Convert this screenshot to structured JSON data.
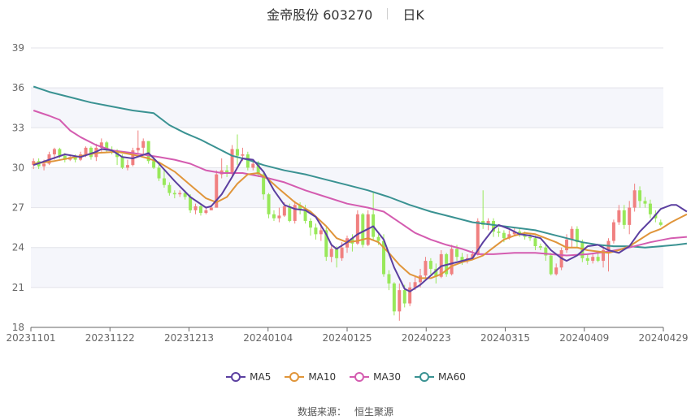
{
  "header": {
    "title": "金帝股份 603270",
    "period": "日K"
  },
  "source": {
    "label": "数据来源：",
    "name": "恒生聚源"
  },
  "colors": {
    "up": "#f08080",
    "down": "#98e85a",
    "MA5": "#5b3fa0",
    "MA10": "#e0953a",
    "MA30": "#d45cb0",
    "MA60": "#3a9292"
  },
  "chart_data": {
    "type": "candlestick",
    "ylim": [
      18,
      39
    ],
    "yticks": [
      18,
      21,
      24,
      27,
      30,
      33,
      36,
      39
    ],
    "xtick_labels": [
      "20231101",
      "20231122",
      "20231213",
      "20240104",
      "20240125",
      "20240223",
      "20240315",
      "20240409",
      "20240429"
    ],
    "legend": [
      "MA5",
      "MA10",
      "MA30",
      "MA60"
    ],
    "candles": [
      [
        30.2,
        30.5,
        29.9,
        30.7
      ],
      [
        30.5,
        30.1,
        29.9,
        30.7
      ],
      [
        30.1,
        30.3,
        29.8,
        30.6
      ],
      [
        30.3,
        31.0,
        30.2,
        31.2
      ],
      [
        31.0,
        31.4,
        30.6,
        31.5
      ],
      [
        31.4,
        30.9,
        30.7,
        31.5
      ],
      [
        30.9,
        30.6,
        30.4,
        31.1
      ],
      [
        30.6,
        30.8,
        30.5,
        31.0
      ],
      [
        30.8,
        30.6,
        30.4,
        31.0
      ],
      [
        30.6,
        31.0,
        30.5,
        31.2
      ],
      [
        31.0,
        31.5,
        30.8,
        31.6
      ],
      [
        31.5,
        30.8,
        30.6,
        31.6
      ],
      [
        30.8,
        31.5,
        30.5,
        31.8
      ],
      [
        31.5,
        31.9,
        31.2,
        32.2
      ],
      [
        31.9,
        31.3,
        31.1,
        32.0
      ],
      [
        31.3,
        31.2,
        31.0,
        31.6
      ],
      [
        31.2,
        30.8,
        30.2,
        31.4
      ],
      [
        30.8,
        30.0,
        29.9,
        31.0
      ],
      [
        30.0,
        30.2,
        29.8,
        30.6
      ],
      [
        30.2,
        31.3,
        30.1,
        31.5
      ],
      [
        31.3,
        31.5,
        31.1,
        32.8
      ],
      [
        31.5,
        32.0,
        30.9,
        32.2
      ],
      [
        32.0,
        30.5,
        30.3,
        32.0
      ],
      [
        30.5,
        30.0,
        29.9,
        30.9
      ],
      [
        30.0,
        29.2,
        29.0,
        30.2
      ],
      [
        29.2,
        28.7,
        28.5,
        29.8
      ],
      [
        28.7,
        28.1,
        27.9,
        28.9
      ],
      [
        28.1,
        28.0,
        27.7,
        28.3
      ],
      [
        28.0,
        28.1,
        27.8,
        28.3
      ],
      [
        28.1,
        27.8,
        27.6,
        28.3
      ],
      [
        27.8,
        26.8,
        26.6,
        28.0
      ],
      [
        26.8,
        27.1,
        26.5,
        27.3
      ],
      [
        27.1,
        26.6,
        26.4,
        27.3
      ],
      [
        26.6,
        26.8,
        26.5,
        27.1
      ],
      [
        26.8,
        27.0,
        26.8,
        27.2
      ],
      [
        27.0,
        29.5,
        27.0,
        29.8
      ],
      [
        29.5,
        29.8,
        29.2,
        30.7
      ],
      [
        29.8,
        29.6,
        29.3,
        30.2
      ],
      [
        29.6,
        31.4,
        29.4,
        31.7
      ],
      [
        31.4,
        30.9,
        30.2,
        32.5
      ],
      [
        30.9,
        31.0,
        30.5,
        31.5
      ],
      [
        31.0,
        30.0,
        29.8,
        31.2
      ],
      [
        30.0,
        30.3,
        29.8,
        30.6
      ],
      [
        30.3,
        29.5,
        29.3,
        30.5
      ],
      [
        29.5,
        28.0,
        27.6,
        29.6
      ],
      [
        28.0,
        26.5,
        26.2,
        28.1
      ],
      [
        26.5,
        26.2,
        26.0,
        26.8
      ],
      [
        26.2,
        26.4,
        25.9,
        27.0
      ],
      [
        26.4,
        27.1,
        26.3,
        27.4
      ],
      [
        27.1,
        26.0,
        25.9,
        27.3
      ],
      [
        26.0,
        27.2,
        25.8,
        27.5
      ],
      [
        27.2,
        26.9,
        26.5,
        27.4
      ],
      [
        26.9,
        26.0,
        25.8,
        27.2
      ],
      [
        26.0,
        25.5,
        24.9,
        26.2
      ],
      [
        25.5,
        25.0,
        24.6,
        25.8
      ],
      [
        25.0,
        25.3,
        24.5,
        25.8
      ],
      [
        25.3,
        23.3,
        23.0,
        25.5
      ],
      [
        23.3,
        23.9,
        22.9,
        24.3
      ],
      [
        23.9,
        23.2,
        22.5,
        24.1
      ],
      [
        23.2,
        24.0,
        23.0,
        24.4
      ],
      [
        24.0,
        24.7,
        23.6,
        24.9
      ],
      [
        24.7,
        24.3,
        23.7,
        25.0
      ],
      [
        24.3,
        26.5,
        24.2,
        26.8
      ],
      [
        26.5,
        24.2,
        24.0,
        26.6
      ],
      [
        24.2,
        26.5,
        24.1,
        26.8
      ],
      [
        26.5,
        24.8,
        24.5,
        28.2
      ],
      [
        24.8,
        24.5,
        24.2,
        25.0
      ],
      [
        24.5,
        22.0,
        21.8,
        25.0
      ],
      [
        22.0,
        21.3,
        20.8,
        22.3
      ],
      [
        21.3,
        19.2,
        18.9,
        21.4
      ],
      [
        19.2,
        20.8,
        18.5,
        21.3
      ],
      [
        20.8,
        19.8,
        19.5,
        21.2
      ],
      [
        19.8,
        21.0,
        19.6,
        21.4
      ],
      [
        21.0,
        21.4,
        20.8,
        21.8
      ],
      [
        21.4,
        21.9,
        21.0,
        22.4
      ],
      [
        21.9,
        23.0,
        21.7,
        23.3
      ],
      [
        23.0,
        22.4,
        22.0,
        23.2
      ],
      [
        22.4,
        21.8,
        21.3,
        22.8
      ],
      [
        21.8,
        23.5,
        21.7,
        23.8
      ],
      [
        23.5,
        22.0,
        21.8,
        23.6
      ],
      [
        22.0,
        23.9,
        21.9,
        24.2
      ],
      [
        23.9,
        23.3,
        23.0,
        24.2
      ],
      [
        23.3,
        23.0,
        22.7,
        23.6
      ],
      [
        23.0,
        23.2,
        22.8,
        23.5
      ],
      [
        23.2,
        23.5,
        23.1,
        23.8
      ],
      [
        23.5,
        26.0,
        23.4,
        26.2
      ],
      [
        26.0,
        25.7,
        25.4,
        28.3
      ],
      [
        25.7,
        26.0,
        25.3,
        26.2
      ],
      [
        26.0,
        25.2,
        24.8,
        26.2
      ],
      [
        25.2,
        25.1,
        24.8,
        25.5
      ],
      [
        25.1,
        24.7,
        24.4,
        25.3
      ],
      [
        24.7,
        25.0,
        24.6,
        25.3
      ],
      [
        25.0,
        25.2,
        24.9,
        25.5
      ],
      [
        25.2,
        25.0,
        24.8,
        25.4
      ],
      [
        25.0,
        24.8,
        24.6,
        25.2
      ],
      [
        24.8,
        24.7,
        24.5,
        25.0
      ],
      [
        24.7,
        24.1,
        23.8,
        24.9
      ],
      [
        24.1,
        24.0,
        23.8,
        24.3
      ],
      [
        24.0,
        23.4,
        23.0,
        24.3
      ],
      [
        23.4,
        22.0,
        21.9,
        23.6
      ],
      [
        22.0,
        22.5,
        21.9,
        22.8
      ],
      [
        22.5,
        23.8,
        22.3,
        24.0
      ],
      [
        23.8,
        24.6,
        23.6,
        25.0
      ],
      [
        24.6,
        25.4,
        24.0,
        25.6
      ],
      [
        25.4,
        24.4,
        24.0,
        25.6
      ],
      [
        24.4,
        23.2,
        22.9,
        24.6
      ],
      [
        23.2,
        23.0,
        22.7,
        23.5
      ],
      [
        23.0,
        23.3,
        22.8,
        23.6
      ],
      [
        23.3,
        23.0,
        22.9,
        23.6
      ],
      [
        23.0,
        23.8,
        22.5,
        24.1
      ],
      [
        23.8,
        24.5,
        22.2,
        24.7
      ],
      [
        24.5,
        25.9,
        24.3,
        26.1
      ],
      [
        25.9,
        26.8,
        25.7,
        27.2
      ],
      [
        26.8,
        25.7,
        25.4,
        27.2
      ],
      [
        25.7,
        27.0,
        25.0,
        27.5
      ],
      [
        27.0,
        28.3,
        26.7,
        28.8
      ],
      [
        28.3,
        27.5,
        27.0,
        28.6
      ],
      [
        27.5,
        27.3,
        27.0,
        27.8
      ],
      [
        27.3,
        26.5,
        26.2,
        27.6
      ],
      [
        26.5,
        26.2,
        25.9,
        26.8
      ],
      [
        25.9,
        25.7,
        25.6,
        26.1
      ]
    ],
    "MA5": [
      [
        0,
        30.2
      ],
      [
        3,
        30.6
      ],
      [
        6,
        31.0
      ],
      [
        9,
        30.8
      ],
      [
        12,
        31.2
      ],
      [
        13,
        31.4
      ],
      [
        15,
        31.3
      ],
      [
        17,
        30.8
      ],
      [
        19,
        30.7
      ],
      [
        22,
        31.1
      ],
      [
        24,
        30.3
      ],
      [
        27,
        29.0
      ],
      [
        30,
        27.8
      ],
      [
        33,
        27.0
      ],
      [
        34,
        27.1
      ],
      [
        36,
        28.0
      ],
      [
        38,
        29.3
      ],
      [
        40,
        30.7
      ],
      [
        42,
        30.6
      ],
      [
        44,
        29.7
      ],
      [
        46,
        28.3
      ],
      [
        48,
        27.2
      ],
      [
        50,
        26.9
      ],
      [
        52,
        26.8
      ],
      [
        54,
        26.3
      ],
      [
        56,
        25.0
      ],
      [
        57,
        24.2
      ],
      [
        58,
        23.9
      ],
      [
        60,
        24.4
      ],
      [
        62,
        25.0
      ],
      [
        64,
        25.4
      ],
      [
        65,
        25.6
      ],
      [
        67,
        24.6
      ],
      [
        69,
        22.5
      ],
      [
        71,
        20.9
      ],
      [
        72,
        20.7
      ],
      [
        74,
        21.2
      ],
      [
        76,
        21.9
      ],
      [
        78,
        22.6
      ],
      [
        80,
        22.8
      ],
      [
        82,
        23.0
      ],
      [
        84,
        23.2
      ],
      [
        86,
        24.4
      ],
      [
        88,
        25.4
      ],
      [
        89,
        25.7
      ],
      [
        91,
        25.4
      ],
      [
        93,
        25.0
      ],
      [
        95,
        24.9
      ],
      [
        97,
        24.7
      ],
      [
        99,
        23.8
      ],
      [
        101,
        23.2
      ],
      [
        102,
        23.0
      ],
      [
        104,
        23.4
      ],
      [
        106,
        24.1
      ],
      [
        108,
        24.2
      ],
      [
        110,
        23.8
      ],
      [
        112,
        23.6
      ],
      [
        114,
        24.1
      ],
      [
        116,
        25.2
      ],
      [
        118,
        26.0
      ],
      [
        120,
        26.9
      ],
      [
        122,
        27.2
      ],
      [
        123,
        27.2
      ],
      [
        125,
        26.7
      ]
    ],
    "MA10": [
      [
        0,
        30.3
      ],
      [
        4,
        30.5
      ],
      [
        8,
        30.8
      ],
      [
        12,
        31.1
      ],
      [
        16,
        31.2
      ],
      [
        20,
        30.9
      ],
      [
        22,
        30.7
      ],
      [
        24,
        30.4
      ],
      [
        27,
        29.7
      ],
      [
        30,
        28.7
      ],
      [
        33,
        27.7
      ],
      [
        35,
        27.4
      ],
      [
        37,
        27.8
      ],
      [
        39,
        28.8
      ],
      [
        41,
        29.5
      ],
      [
        43,
        29.6
      ],
      [
        45,
        29.1
      ],
      [
        47,
        28.4
      ],
      [
        50,
        27.4
      ],
      [
        53,
        26.7
      ],
      [
        56,
        25.6
      ],
      [
        58,
        24.7
      ],
      [
        60,
        24.4
      ],
      [
        62,
        24.5
      ],
      [
        64,
        24.7
      ],
      [
        66,
        24.4
      ],
      [
        68,
        23.6
      ],
      [
        70,
        22.7
      ],
      [
        72,
        22.0
      ],
      [
        74,
        21.7
      ],
      [
        76,
        21.7
      ],
      [
        78,
        22.0
      ],
      [
        80,
        22.6
      ],
      [
        82,
        22.9
      ],
      [
        84,
        23.1
      ],
      [
        86,
        23.4
      ],
      [
        88,
        24.0
      ],
      [
        90,
        24.6
      ],
      [
        92,
        24.9
      ],
      [
        94,
        25.1
      ],
      [
        96,
        25.0
      ],
      [
        98,
        24.7
      ],
      [
        100,
        24.4
      ],
      [
        102,
        24.0
      ],
      [
        104,
        24.0
      ],
      [
        106,
        23.8
      ],
      [
        108,
        23.7
      ],
      [
        110,
        23.6
      ],
      [
        112,
        23.8
      ],
      [
        114,
        24.1
      ],
      [
        116,
        24.6
      ],
      [
        118,
        25.1
      ],
      [
        120,
        25.4
      ],
      [
        122,
        25.9
      ],
      [
        124,
        26.3
      ],
      [
        125,
        26.5
      ]
    ],
    "MA30": [
      [
        0,
        34.3
      ],
      [
        3,
        33.9
      ],
      [
        5,
        33.6
      ],
      [
        7,
        32.8
      ],
      [
        9,
        32.3
      ],
      [
        12,
        31.7
      ],
      [
        15,
        31.3
      ],
      [
        19,
        31.1
      ],
      [
        24,
        30.8
      ],
      [
        27,
        30.6
      ],
      [
        30,
        30.3
      ],
      [
        33,
        29.8
      ],
      [
        36,
        29.6
      ],
      [
        40,
        29.6
      ],
      [
        44,
        29.3
      ],
      [
        48,
        28.9
      ],
      [
        52,
        28.3
      ],
      [
        56,
        27.8
      ],
      [
        60,
        27.3
      ],
      [
        64,
        27.0
      ],
      [
        67,
        26.7
      ],
      [
        70,
        25.9
      ],
      [
        73,
        25.1
      ],
      [
        76,
        24.6
      ],
      [
        79,
        24.2
      ],
      [
        82,
        23.9
      ],
      [
        85,
        23.5
      ],
      [
        88,
        23.5
      ],
      [
        92,
        23.6
      ],
      [
        96,
        23.6
      ],
      [
        99,
        23.5
      ],
      [
        102,
        23.4
      ],
      [
        106,
        23.5
      ],
      [
        110,
        23.7
      ],
      [
        114,
        24.0
      ],
      [
        118,
        24.4
      ],
      [
        122,
        24.7
      ],
      [
        125,
        24.8
      ]
    ],
    "MA60": [
      [
        0,
        36.1
      ],
      [
        3,
        35.7
      ],
      [
        7,
        35.3
      ],
      [
        11,
        34.9
      ],
      [
        15,
        34.6
      ],
      [
        19,
        34.3
      ],
      [
        23,
        34.1
      ],
      [
        26,
        33.2
      ],
      [
        29,
        32.6
      ],
      [
        32,
        32.1
      ],
      [
        35,
        31.5
      ],
      [
        38,
        30.9
      ],
      [
        41,
        30.6
      ],
      [
        44,
        30.2
      ],
      [
        48,
        29.8
      ],
      [
        52,
        29.5
      ],
      [
        56,
        29.1
      ],
      [
        60,
        28.7
      ],
      [
        64,
        28.3
      ],
      [
        68,
        27.8
      ],
      [
        72,
        27.2
      ],
      [
        76,
        26.7
      ],
      [
        80,
        26.3
      ],
      [
        84,
        25.9
      ],
      [
        88,
        25.7
      ],
      [
        92,
        25.5
      ],
      [
        96,
        25.3
      ],
      [
        99,
        25.0
      ],
      [
        102,
        24.7
      ],
      [
        105,
        24.4
      ],
      [
        108,
        24.2
      ],
      [
        111,
        24.1
      ],
      [
        114,
        24.1
      ],
      [
        117,
        24.0
      ],
      [
        120,
        24.1
      ],
      [
        123,
        24.2
      ],
      [
        125,
        24.3
      ]
    ]
  }
}
